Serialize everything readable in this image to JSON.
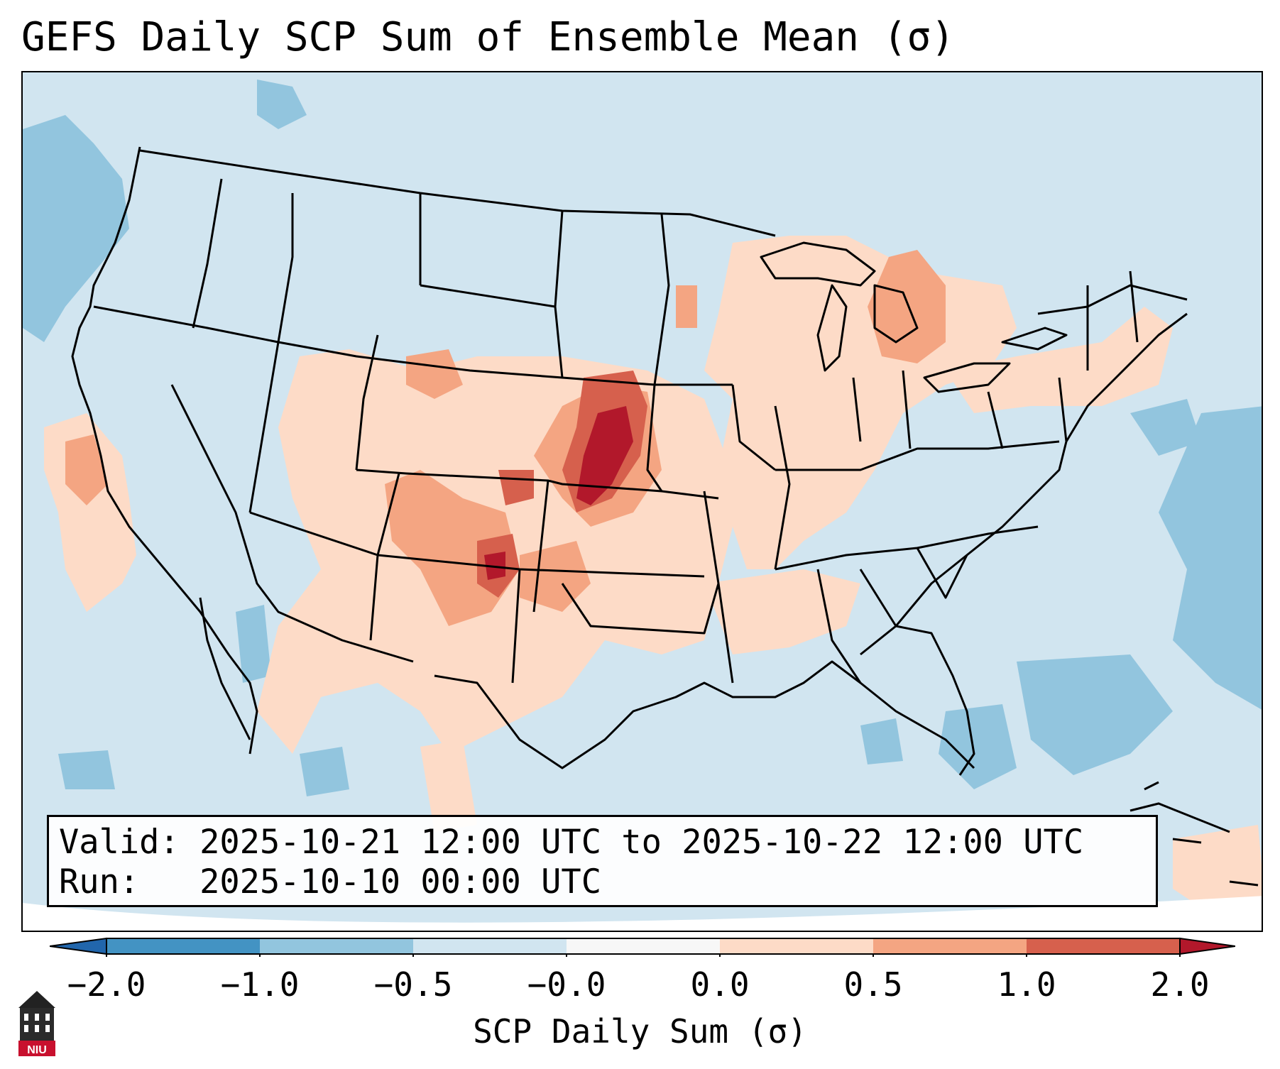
{
  "title": "GEFS Daily SCP Sum of Ensemble Mean (σ)",
  "info": {
    "valid": "Valid: 2025-10-21 12:00 UTC to 2025-10-22 12:00 UTC",
    "run": "Run:   2025-10-10 00:00 UTC"
  },
  "colorbar": {
    "label": "SCP Daily Sum (σ)",
    "ticks": [
      "−2.0",
      "−1.0",
      "−0.5",
      "−0.0",
      "0.0",
      "0.5",
      "1.0",
      "2.0"
    ],
    "colors": [
      "#4393c3",
      "#92c5de",
      "#d1e5f0",
      "#f7f7f7",
      "#fddbc7",
      "#f4a582",
      "#d6604d"
    ],
    "under_color": "#2166ac",
    "over_color": "#b2182b"
  },
  "colors": {
    "land_sea": "#d1e5f0",
    "light_blue": "#92c5de",
    "light_red": "#fddbc7",
    "mid_red": "#f4a582",
    "red": "#d6604d",
    "dark_red": "#b2182b"
  },
  "logo": {
    "text": "NIU",
    "icon": "university-tower-icon"
  }
}
